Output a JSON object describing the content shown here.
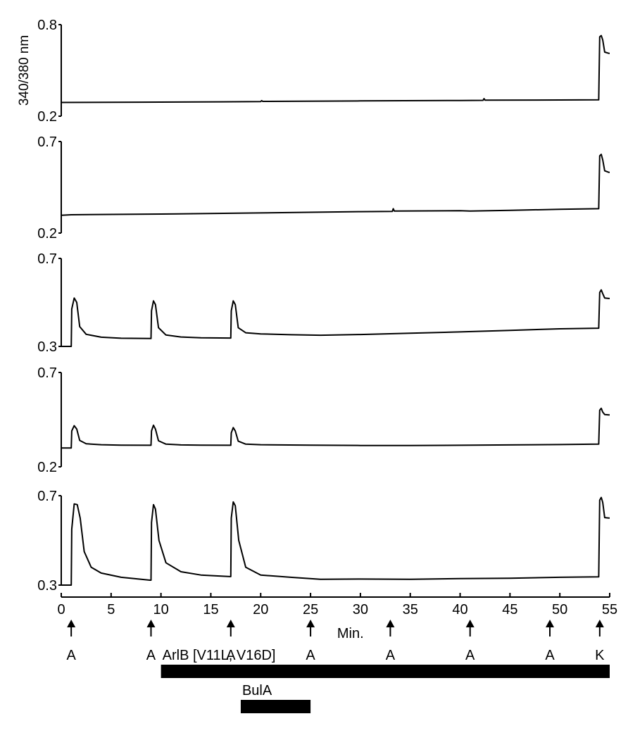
{
  "chart_data": {
    "type": "line",
    "ylabel": "340/380 nm",
    "xlabel": "Min.",
    "xlim": [
      0,
      55
    ],
    "x_ticks": [
      "0",
      "5",
      "10",
      "15",
      "20",
      "25",
      "30",
      "35",
      "40",
      "45",
      "50",
      "55"
    ],
    "x_tick_values": [
      0,
      5,
      10,
      15,
      20,
      25,
      30,
      35,
      40,
      45,
      50,
      55
    ],
    "panels": [
      {
        "ylim": [
          0.2,
          0.8
        ],
        "ytick_labels": [
          "0.8",
          "0.2"
        ],
        "points": [
          [
            0,
            0.29
          ],
          [
            8,
            0.292
          ],
          [
            16,
            0.294
          ],
          [
            20,
            0.296
          ],
          [
            20.1,
            0.302
          ],
          [
            20.2,
            0.297
          ],
          [
            30,
            0.3
          ],
          [
            40,
            0.303
          ],
          [
            42.3,
            0.304
          ],
          [
            42.4,
            0.315
          ],
          [
            42.5,
            0.305
          ],
          [
            50,
            0.306
          ],
          [
            53.9,
            0.307
          ],
          [
            54.0,
            0.72
          ],
          [
            54.15,
            0.728
          ],
          [
            54.3,
            0.7
          ],
          [
            54.5,
            0.62
          ],
          [
            54.9,
            0.612
          ],
          [
            55,
            0.612
          ]
        ]
      },
      {
        "ylim": [
          0.2,
          0.7
        ],
        "ytick_labels": [
          "0.7",
          "0.2"
        ],
        "points": [
          [
            0,
            0.297
          ],
          [
            1,
            0.3
          ],
          [
            10,
            0.304
          ],
          [
            20,
            0.31
          ],
          [
            30,
            0.317
          ],
          [
            33.2,
            0.318
          ],
          [
            33.3,
            0.333
          ],
          [
            33.4,
            0.32
          ],
          [
            40,
            0.322
          ],
          [
            41,
            0.32
          ],
          [
            45,
            0.324
          ],
          [
            50,
            0.33
          ],
          [
            53.9,
            0.333
          ],
          [
            54.0,
            0.622
          ],
          [
            54.15,
            0.63
          ],
          [
            54.3,
            0.6
          ],
          [
            54.5,
            0.54
          ],
          [
            54.9,
            0.532
          ],
          [
            55,
            0.532
          ]
        ]
      },
      {
        "ylim": [
          0.3,
          0.7
        ],
        "ytick_labels": [
          "0.7",
          "0.3"
        ],
        "points": [
          [
            0,
            0.3
          ],
          [
            1.0,
            0.3
          ],
          [
            1.05,
            0.47
          ],
          [
            1.3,
            0.52
          ],
          [
            1.55,
            0.5
          ],
          [
            1.85,
            0.39
          ],
          [
            2.5,
            0.355
          ],
          [
            4,
            0.342
          ],
          [
            6,
            0.337
          ],
          [
            8.9,
            0.336
          ],
          [
            9.0,
            0.336
          ],
          [
            9.05,
            0.462
          ],
          [
            9.25,
            0.507
          ],
          [
            9.45,
            0.49
          ],
          [
            9.75,
            0.385
          ],
          [
            10.5,
            0.352
          ],
          [
            12,
            0.343
          ],
          [
            14,
            0.339
          ],
          [
            16.9,
            0.338
          ],
          [
            17.0,
            0.338
          ],
          [
            17.05,
            0.462
          ],
          [
            17.25,
            0.507
          ],
          [
            17.45,
            0.49
          ],
          [
            17.75,
            0.385
          ],
          [
            18.5,
            0.362
          ],
          [
            20,
            0.357
          ],
          [
            23,
            0.353
          ],
          [
            26,
            0.351
          ],
          [
            30,
            0.354
          ],
          [
            35,
            0.36
          ],
          [
            40,
            0.366
          ],
          [
            45,
            0.373
          ],
          [
            50,
            0.38
          ],
          [
            53.9,
            0.383
          ],
          [
            54.0,
            0.545
          ],
          [
            54.15,
            0.557
          ],
          [
            54.3,
            0.54
          ],
          [
            54.5,
            0.52
          ],
          [
            54.9,
            0.518
          ],
          [
            55,
            0.518
          ]
        ]
      },
      {
        "ylim": [
          0.2,
          0.7
        ],
        "ytick_labels": [
          "0.7",
          "0.2"
        ],
        "points": [
          [
            0,
            0.3
          ],
          [
            1.0,
            0.3
          ],
          [
            1.05,
            0.39
          ],
          [
            1.3,
            0.418
          ],
          [
            1.55,
            0.4
          ],
          [
            1.85,
            0.34
          ],
          [
            2.5,
            0.322
          ],
          [
            4,
            0.317
          ],
          [
            6,
            0.315
          ],
          [
            8.9,
            0.314
          ],
          [
            9.0,
            0.314
          ],
          [
            9.05,
            0.39
          ],
          [
            9.25,
            0.42
          ],
          [
            9.45,
            0.4
          ],
          [
            9.75,
            0.338
          ],
          [
            10.5,
            0.32
          ],
          [
            12,
            0.316
          ],
          [
            14,
            0.315
          ],
          [
            16.9,
            0.314
          ],
          [
            17.0,
            0.314
          ],
          [
            17.05,
            0.38
          ],
          [
            17.25,
            0.408
          ],
          [
            17.45,
            0.39
          ],
          [
            17.75,
            0.336
          ],
          [
            18.5,
            0.32
          ],
          [
            20,
            0.317
          ],
          [
            25,
            0.315
          ],
          [
            30,
            0.313
          ],
          [
            35,
            0.313
          ],
          [
            40,
            0.314
          ],
          [
            45,
            0.316
          ],
          [
            50,
            0.318
          ],
          [
            53.9,
            0.32
          ],
          [
            54.0,
            0.5
          ],
          [
            54.15,
            0.51
          ],
          [
            54.3,
            0.49
          ],
          [
            54.5,
            0.477
          ],
          [
            54.9,
            0.475
          ],
          [
            55,
            0.475
          ]
        ]
      },
      {
        "ylim": [
          0.3,
          0.7
        ],
        "ytick_labels": [
          "0.7",
          "0.3"
        ],
        "points": [
          [
            0,
            0.3
          ],
          [
            1.0,
            0.3
          ],
          [
            1.05,
            0.55
          ],
          [
            1.3,
            0.663
          ],
          [
            1.6,
            0.66
          ],
          [
            1.9,
            0.6
          ],
          [
            2.3,
            0.45
          ],
          [
            3,
            0.38
          ],
          [
            4,
            0.354
          ],
          [
            6,
            0.335
          ],
          [
            8.9,
            0.322
          ],
          [
            9.0,
            0.322
          ],
          [
            9.05,
            0.58
          ],
          [
            9.25,
            0.66
          ],
          [
            9.45,
            0.64
          ],
          [
            9.8,
            0.5
          ],
          [
            10.5,
            0.4
          ],
          [
            12,
            0.36
          ],
          [
            14,
            0.345
          ],
          [
            16.9,
            0.338
          ],
          [
            17.0,
            0.338
          ],
          [
            17.05,
            0.6
          ],
          [
            17.25,
            0.672
          ],
          [
            17.45,
            0.655
          ],
          [
            17.8,
            0.5
          ],
          [
            18.5,
            0.38
          ],
          [
            20,
            0.345
          ],
          [
            23,
            0.335
          ],
          [
            26,
            0.326
          ],
          [
            30,
            0.327
          ],
          [
            35,
            0.326
          ],
          [
            40,
            0.329
          ],
          [
            45,
            0.331
          ],
          [
            50,
            0.335
          ],
          [
            53.9,
            0.337
          ],
          [
            54.0,
            0.68
          ],
          [
            54.15,
            0.692
          ],
          [
            54.3,
            0.67
          ],
          [
            54.5,
            0.602
          ],
          [
            54.9,
            0.6
          ],
          [
            55,
            0.6
          ]
        ]
      }
    ],
    "arrows": [
      {
        "x": 1,
        "label": "A"
      },
      {
        "x": 9,
        "label": "A"
      },
      {
        "x": 17,
        "label": "A"
      },
      {
        "x": 25,
        "label": "A"
      },
      {
        "x": 33,
        "label": "A"
      },
      {
        "x": 41,
        "label": "A"
      },
      {
        "x": 49,
        "label": "A"
      },
      {
        "x": 54,
        "label": "K"
      }
    ],
    "bars": [
      {
        "label": "ArlB [V11L, V16D]",
        "start": 10,
        "end": 55
      },
      {
        "label": "BulA",
        "start": 18,
        "end": 25
      }
    ]
  }
}
